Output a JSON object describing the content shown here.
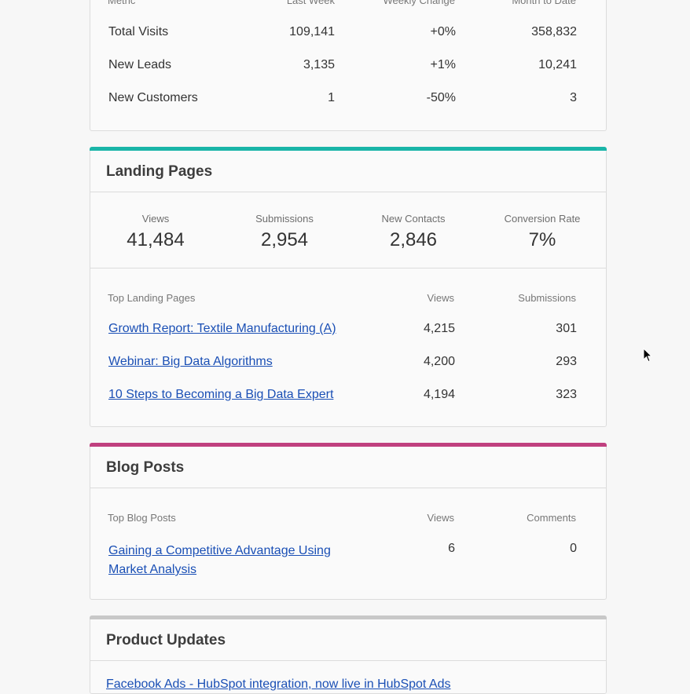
{
  "overview": {
    "columns": [
      "Metric",
      "Last Week",
      "Weekly Change",
      "Month to Date"
    ],
    "rows": [
      {
        "metric": "Total Visits",
        "last_week": "109,141",
        "change": "+0%",
        "mtd": "358,832"
      },
      {
        "metric": "New Leads",
        "last_week": "3,135",
        "change": "+1%",
        "mtd": "10,241"
      },
      {
        "metric": "New Customers",
        "last_week": "1",
        "change": "-50%",
        "mtd": "3"
      }
    ]
  },
  "landing_pages": {
    "title": "Landing Pages",
    "accent_color": "#1ab5a8",
    "stats": [
      {
        "label": "Views",
        "value": "41,484"
      },
      {
        "label": "Submissions",
        "value": "2,954"
      },
      {
        "label": "New Contacts",
        "value": "2,846"
      },
      {
        "label": "Conversion Rate",
        "value": "7%"
      }
    ],
    "columns": [
      "Top Landing Pages",
      "Views",
      "Submissions"
    ],
    "rows": [
      {
        "name": "Growth Report: Textile Manufacturing (A)",
        "views": "4,215",
        "submissions": "301"
      },
      {
        "name": "Webinar: Big Data Algorithms",
        "views": "4,200",
        "submissions": "293"
      },
      {
        "name": "10 Steps to Becoming a Big Data Expert",
        "views": "4,194",
        "submissions": "323"
      }
    ]
  },
  "blog_posts": {
    "title": "Blog Posts",
    "accent_color": "#c0407f",
    "columns": [
      "Top Blog Posts",
      "Views",
      "Comments"
    ],
    "rows": [
      {
        "name_line1": "Gaining a Competitive Advantage Using",
        "name_line2": "Market Analysis",
        "views": "6",
        "comments": "0"
      }
    ]
  },
  "product_updates": {
    "title": "Product Updates",
    "accent_color": "#c8c8c8",
    "first_item": "Facebook Ads - HubSpot integration, now live in HubSpot Ads"
  },
  "colors": {
    "link": "#1a4fb5",
    "background": "#f7f7f7"
  },
  "icons": {
    "cursor": "mouse-pointer-icon"
  }
}
